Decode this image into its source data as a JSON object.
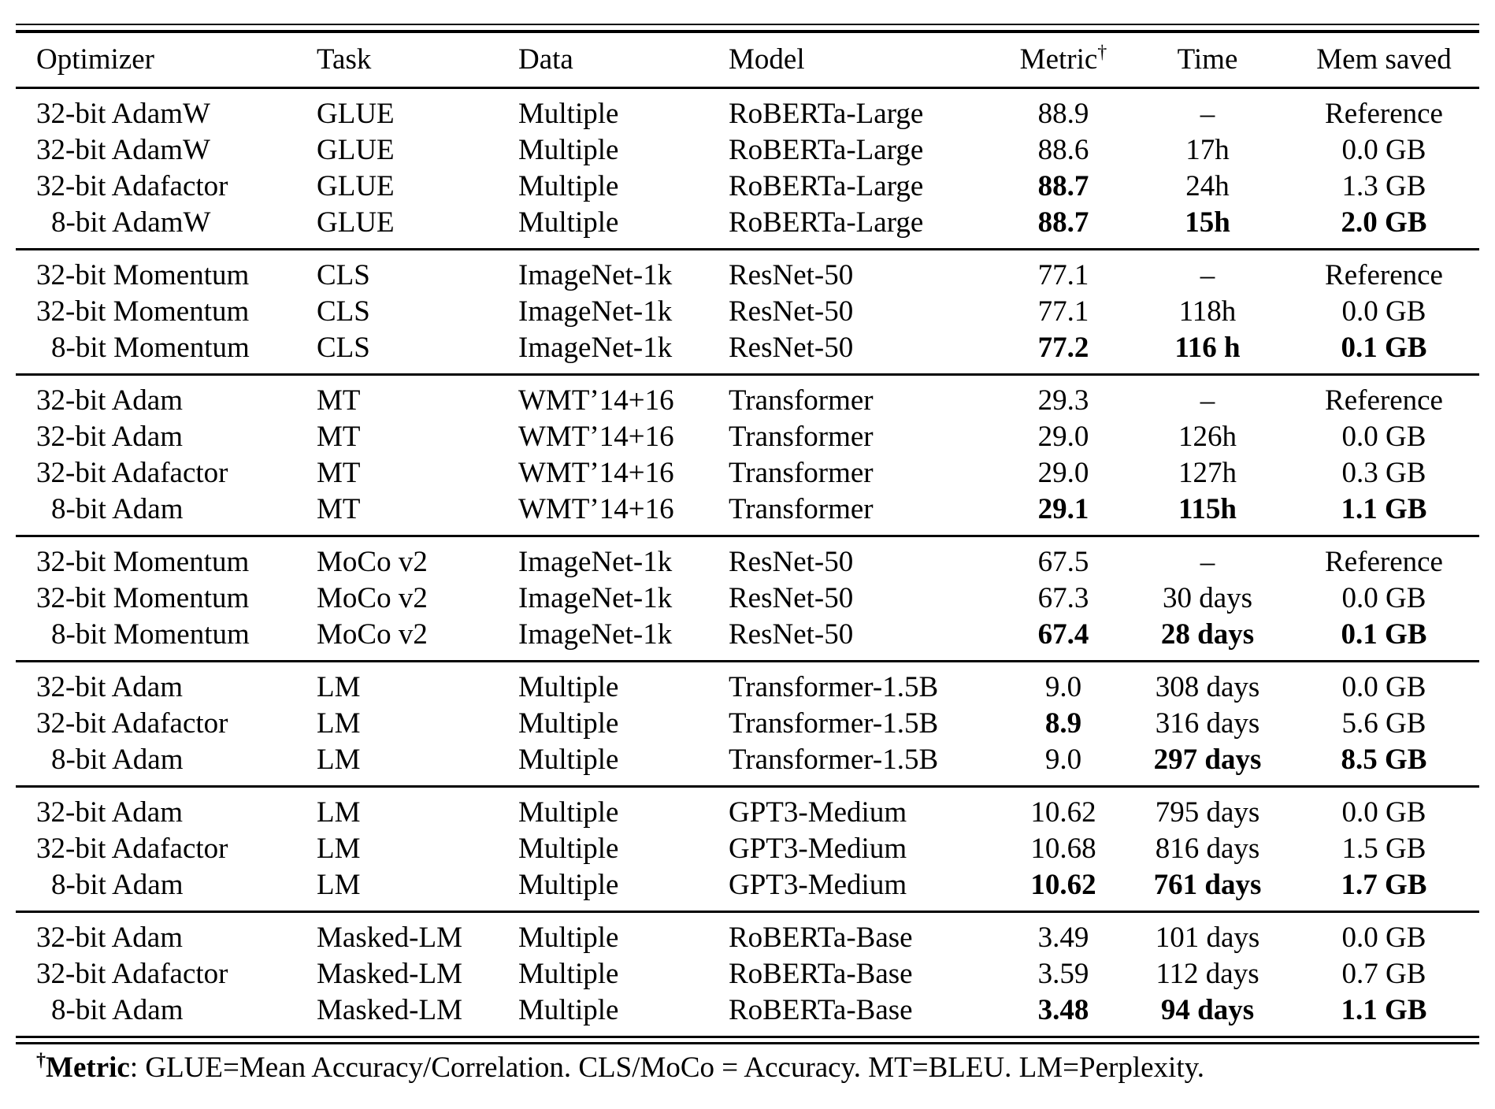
{
  "colors": {
    "background": "#ffffff",
    "text": "#000000",
    "rule": "#000000"
  },
  "table": {
    "columns": [
      {
        "label": "Optimizer",
        "align": "left"
      },
      {
        "label": "Task",
        "align": "left"
      },
      {
        "label": "Data",
        "align": "left"
      },
      {
        "label": "Model",
        "align": "left"
      },
      {
        "label": "Metric",
        "sup": "†",
        "align": "center"
      },
      {
        "label": "Time",
        "align": "center"
      },
      {
        "label": "Mem saved",
        "align": "center"
      }
    ],
    "sections": [
      {
        "rows": [
          {
            "cells": [
              "32-bit AdamW",
              "GLUE",
              "Multiple",
              "RoBERTa-Large",
              "88.9",
              "–",
              "Reference"
            ],
            "bold": []
          },
          {
            "cells": [
              "32-bit AdamW",
              "GLUE",
              "Multiple",
              "RoBERTa-Large",
              "88.6",
              "17h",
              "0.0 GB"
            ],
            "bold": []
          },
          {
            "cells": [
              "32-bit Adafactor",
              "GLUE",
              "Multiple",
              "RoBERTa-Large",
              "88.7",
              "24h",
              "1.3 GB"
            ],
            "bold": [
              4
            ]
          },
          {
            "cells": [
              "8-bit AdamW",
              "GLUE",
              "Multiple",
              "RoBERTa-Large",
              "88.7",
              "15h",
              "2.0 GB"
            ],
            "bold": [
              4,
              5,
              6
            ]
          }
        ]
      },
      {
        "rows": [
          {
            "cells": [
              "32-bit Momentum",
              "CLS",
              "ImageNet-1k",
              "ResNet-50",
              "77.1",
              "–",
              "Reference"
            ],
            "bold": []
          },
          {
            "cells": [
              "32-bit Momentum",
              "CLS",
              "ImageNet-1k",
              "ResNet-50",
              "77.1",
              "118h",
              "0.0 GB"
            ],
            "bold": []
          },
          {
            "cells": [
              "8-bit Momentum",
              "CLS",
              "ImageNet-1k",
              "ResNet-50",
              "77.2",
              "116 h",
              "0.1 GB"
            ],
            "bold": [
              4,
              5,
              6
            ]
          }
        ]
      },
      {
        "rows": [
          {
            "cells": [
              "32-bit Adam",
              "MT",
              "WMT’14+16",
              "Transformer",
              "29.3",
              "–",
              "Reference"
            ],
            "bold": []
          },
          {
            "cells": [
              "32-bit Adam",
              "MT",
              "WMT’14+16",
              "Transformer",
              "29.0",
              "126h",
              "0.0 GB"
            ],
            "bold": []
          },
          {
            "cells": [
              "32-bit Adafactor",
              "MT",
              "WMT’14+16",
              "Transformer",
              "29.0",
              "127h",
              "0.3 GB"
            ],
            "bold": []
          },
          {
            "cells": [
              "8-bit Adam",
              "MT",
              "WMT’14+16",
              "Transformer",
              "29.1",
              "115h",
              "1.1 GB"
            ],
            "bold": [
              4,
              5,
              6
            ]
          }
        ]
      },
      {
        "rows": [
          {
            "cells": [
              "32-bit Momentum",
              "MoCo v2",
              "ImageNet-1k",
              "ResNet-50",
              "67.5",
              "–",
              "Reference"
            ],
            "bold": []
          },
          {
            "cells": [
              "32-bit Momentum",
              "MoCo v2",
              "ImageNet-1k",
              "ResNet-50",
              "67.3",
              "30 days",
              "0.0 GB"
            ],
            "bold": []
          },
          {
            "cells": [
              "8-bit Momentum",
              "MoCo v2",
              "ImageNet-1k",
              "ResNet-50",
              "67.4",
              "28 days",
              "0.1 GB"
            ],
            "bold": [
              4,
              5,
              6
            ]
          }
        ]
      },
      {
        "rows": [
          {
            "cells": [
              "32-bit Adam",
              "LM",
              "Multiple",
              "Transformer-1.5B",
              "9.0",
              "308 days",
              "0.0 GB"
            ],
            "bold": []
          },
          {
            "cells": [
              "32-bit Adafactor",
              "LM",
              "Multiple",
              "Transformer-1.5B",
              "8.9",
              "316 days",
              "5.6 GB"
            ],
            "bold": [
              4
            ]
          },
          {
            "cells": [
              "8-bit Adam",
              "LM",
              "Multiple",
              "Transformer-1.5B",
              "9.0",
              "297 days",
              "8.5 GB"
            ],
            "bold": [
              5,
              6
            ]
          }
        ]
      },
      {
        "rows": [
          {
            "cells": [
              "32-bit Adam",
              "LM",
              "Multiple",
              "GPT3-Medium",
              "10.62",
              "795 days",
              "0.0 GB"
            ],
            "bold": []
          },
          {
            "cells": [
              "32-bit Adafactor",
              "LM",
              "Multiple",
              "GPT3-Medium",
              "10.68",
              "816 days",
              "1.5 GB"
            ],
            "bold": []
          },
          {
            "cells": [
              "8-bit Adam",
              "LM",
              "Multiple",
              "GPT3-Medium",
              "10.62",
              "761 days",
              "1.7 GB"
            ],
            "bold": [
              4,
              5,
              6
            ]
          }
        ]
      },
      {
        "rows": [
          {
            "cells": [
              "32-bit Adam",
              "Masked-LM",
              "Multiple",
              "RoBERTa-Base",
              "3.49",
              "101 days",
              "0.0 GB"
            ],
            "bold": []
          },
          {
            "cells": [
              "32-bit Adafactor",
              "Masked-LM",
              "Multiple",
              "RoBERTa-Base",
              "3.59",
              "112 days",
              "0.7 GB"
            ],
            "bold": []
          },
          {
            "cells": [
              "8-bit Adam",
              "Masked-LM",
              "Multiple",
              "RoBERTa-Base",
              "3.48",
              "94 days",
              "1.1 GB"
            ],
            "bold": [
              4,
              5,
              6
            ]
          }
        ]
      }
    ]
  },
  "footnote": {
    "dagger": "†",
    "bold_label": "Metric",
    "text": ": GLUE=Mean Accuracy/Correlation. CLS/MoCo = Accuracy. MT=BLEU. LM=Perplexity."
  }
}
